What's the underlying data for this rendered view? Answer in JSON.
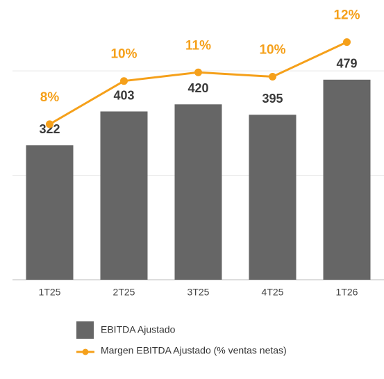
{
  "chart_data": {
    "type": "bar",
    "categories": [
      "1T25",
      "2T25",
      "3T25",
      "4T25",
      "1T26"
    ],
    "series": [
      {
        "name": "EBITDA Ajustado",
        "type": "bar",
        "color": "#666666",
        "values": [
          322,
          403,
          420,
          395,
          479
        ]
      },
      {
        "name": "Margen EBITDA Ajustado (% ventas netas)",
        "type": "line",
        "axis": "y2",
        "color": "#f5a01a",
        "values": [
          8.2,
          10.2,
          10.6,
          10.4,
          12.0
        ],
        "value_labels": [
          "8%",
          "10%",
          "11%",
          "10%",
          "12%"
        ]
      }
    ],
    "ylim": [
      0,
      600
    ],
    "yticks": [
      0,
      250,
      500
    ],
    "y2lim": [
      1,
      12.6
    ],
    "grid": true,
    "legend": "bottom"
  }
}
